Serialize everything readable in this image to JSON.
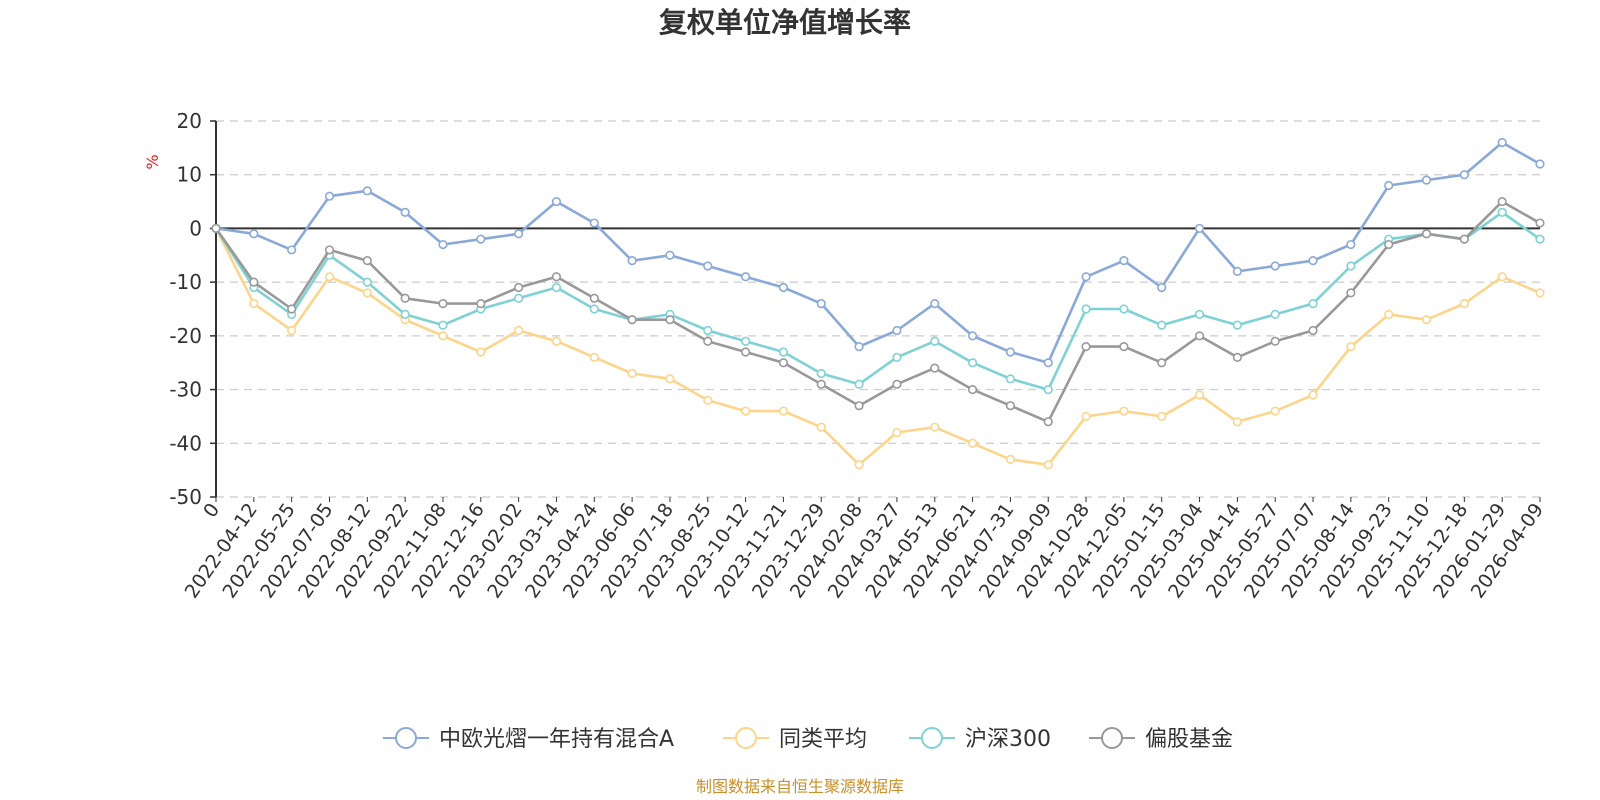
{
  "chart_data": {
    "type": "line",
    "title": "复权单位净值增长率",
    "ylabel": "%",
    "xlabel": "",
    "ylim": [
      -50,
      20
    ],
    "yticks": [
      20,
      10,
      0,
      -10,
      -20,
      -30,
      -40,
      -50
    ],
    "grid": true,
    "legend_position": "bottom",
    "categories": [
      "0",
      "2022-04-12",
      "2022-05-25",
      "2022-07-05",
      "2022-08-12",
      "2022-09-22",
      "2022-11-08",
      "2022-12-16",
      "2023-02-02",
      "2023-03-14",
      "2023-04-24",
      "2023-06-06",
      "2023-07-18",
      "2023-08-25",
      "2023-10-12",
      "2023-11-21",
      "2023-12-29",
      "2024-02-08",
      "2024-03-27",
      "2024-05-13",
      "2024-06-21",
      "2024-07-31",
      "2024-09-09",
      "2024-10-28",
      "2024-12-05",
      "2025-01-15",
      "2025-03-04",
      "2025-04-14",
      "2025-05-27",
      "2025-07-07",
      "2025-08-14",
      "2025-09-23",
      "2025-11-10",
      "2025-12-18",
      "2026-01-29",
      "2026-04-09"
    ],
    "series": [
      {
        "name": "中欧光熠一年持有混合A",
        "color": "#8aa8d8",
        "values": [
          0,
          -1,
          -4,
          6,
          7,
          3,
          -3,
          -2,
          -1,
          5,
          1,
          -6,
          -5,
          -7,
          -9,
          -11,
          -14,
          -22,
          -19,
          -14,
          -20,
          -23,
          -25,
          -9,
          -6,
          -11,
          0,
          -8,
          -7,
          -6,
          -3,
          8,
          9,
          10,
          16,
          12
        ]
      },
      {
        "name": "同类平均",
        "color": "#fcd58a",
        "values": [
          0,
          -14,
          -19,
          -9,
          -12,
          -17,
          -20,
          -23,
          -19,
          -21,
          -24,
          -27,
          -28,
          -32,
          -34,
          -34,
          -37,
          -44,
          -38,
          -37,
          -40,
          -43,
          -44,
          -35,
          -34,
          -35,
          -31,
          -36,
          -34,
          -31,
          -22,
          -16,
          -17,
          -14,
          -9,
          -12
        ]
      },
      {
        "name": "沪深300",
        "color": "#7fd2d4",
        "values": [
          0,
          -11,
          -16,
          -5,
          -10,
          -16,
          -18,
          -15,
          -13,
          -11,
          -15,
          -17,
          -16,
          -19,
          -21,
          -23,
          -27,
          -29,
          -24,
          -21,
          -25,
          -28,
          -30,
          -15,
          -15,
          -18,
          -16,
          -18,
          -16,
          -14,
          -7,
          -2,
          -1,
          -2,
          3,
          -2
        ]
      },
      {
        "name": "偏股基金",
        "color": "#999999",
        "values": [
          0,
          -10,
          -15,
          -4,
          -6,
          -13,
          -14,
          -14,
          -11,
          -9,
          -13,
          -17,
          -17,
          -21,
          -23,
          -25,
          -29,
          -33,
          -29,
          -26,
          -30,
          -33,
          -36,
          -22,
          -22,
          -25,
          -20,
          -24,
          -21,
          -19,
          -12,
          -3,
          -1,
          -2,
          5,
          1
        ]
      }
    ]
  },
  "legend": {
    "items": [
      "中欧光熠一年持有混合A",
      "同类平均",
      "沪深300",
      "偏股基金"
    ]
  },
  "footer": {
    "source": "制图数据来自恒生聚源数据库"
  }
}
